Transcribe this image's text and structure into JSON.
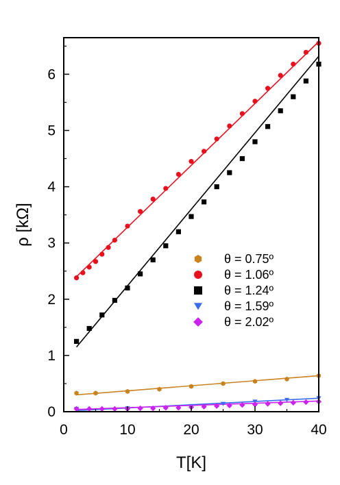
{
  "chart_data": {
    "type": "scatter",
    "title": "",
    "xlabel": "T[K]",
    "ylabel": "ρ [kΩ]",
    "xlim": [
      0,
      40
    ],
    "ylim": [
      0,
      6.65
    ],
    "xticks": [
      "0",
      "10",
      "20",
      "30",
      "40"
    ],
    "yticks": [
      "0",
      "1",
      "2",
      "3",
      "4",
      "5",
      "6"
    ],
    "legend_position": "center-right",
    "grid": false,
    "series": [
      {
        "name": "θ = 0.75º",
        "color": "#c8821e",
        "marker": "hexagon",
        "data": [
          [
            2,
            0.33
          ],
          [
            5,
            0.33
          ],
          [
            10,
            0.36
          ],
          [
            15,
            0.4
          ],
          [
            20,
            0.45
          ],
          [
            25,
            0.5
          ],
          [
            30,
            0.54
          ],
          [
            35,
            0.58
          ],
          [
            40,
            0.64
          ]
        ],
        "fit": [
          [
            2,
            0.3
          ],
          [
            40,
            0.64
          ]
        ]
      },
      {
        "name": "θ = 1.06º",
        "color": "#e8101e",
        "marker": "circle",
        "data": [
          [
            2,
            2.38
          ],
          [
            3,
            2.47
          ],
          [
            4,
            2.57
          ],
          [
            5,
            2.67
          ],
          [
            6,
            2.8
          ],
          [
            7,
            2.92
          ],
          [
            8,
            3.05
          ],
          [
            10,
            3.3
          ],
          [
            12,
            3.56
          ],
          [
            14,
            3.78
          ],
          [
            16,
            3.97
          ],
          [
            18,
            4.22
          ],
          [
            20,
            4.45
          ],
          [
            22,
            4.63
          ],
          [
            24,
            4.85
          ],
          [
            26,
            5.08
          ],
          [
            28,
            5.3
          ],
          [
            30,
            5.52
          ],
          [
            32,
            5.75
          ],
          [
            34,
            5.98
          ],
          [
            36,
            6.18
          ],
          [
            38,
            6.39
          ],
          [
            40,
            6.55
          ]
        ],
        "fit": [
          [
            2,
            2.4
          ],
          [
            40,
            6.58
          ]
        ]
      },
      {
        "name": "θ = 1.24º",
        "color": "#000000",
        "marker": "square",
        "data": [
          [
            2,
            1.25
          ],
          [
            4,
            1.48
          ],
          [
            6,
            1.72
          ],
          [
            8,
            1.98
          ],
          [
            10,
            2.2
          ],
          [
            12,
            2.45
          ],
          [
            14,
            2.7
          ],
          [
            16,
            2.95
          ],
          [
            18,
            3.2
          ],
          [
            20,
            3.47
          ],
          [
            22,
            3.73
          ],
          [
            24,
            4.0
          ],
          [
            26,
            4.25
          ],
          [
            28,
            4.5
          ],
          [
            30,
            4.8
          ],
          [
            32,
            5.07
          ],
          [
            34,
            5.35
          ],
          [
            36,
            5.6
          ],
          [
            38,
            5.88
          ],
          [
            40,
            6.18
          ]
        ],
        "fit": [
          [
            2,
            1.15
          ],
          [
            40,
            6.32
          ]
        ]
      },
      {
        "name": "θ = 1.59º",
        "color": "#3a6cf0",
        "marker": "triangle-down",
        "data": [
          [
            2,
            0.05
          ],
          [
            10,
            0.06
          ],
          [
            20,
            0.1
          ],
          [
            25,
            0.14
          ],
          [
            30,
            0.18
          ],
          [
            35,
            0.21
          ],
          [
            40,
            0.24
          ]
        ],
        "fit": [
          [
            2,
            0.02
          ],
          [
            40,
            0.24
          ]
        ]
      },
      {
        "name": "θ = 2.02º",
        "color": "#cc22ee",
        "marker": "diamond",
        "data": [
          [
            2,
            0.05
          ],
          [
            4,
            0.05
          ],
          [
            6,
            0.05
          ],
          [
            8,
            0.05
          ],
          [
            10,
            0.05
          ],
          [
            12,
            0.06
          ],
          [
            14,
            0.06
          ],
          [
            16,
            0.07
          ],
          [
            18,
            0.07
          ],
          [
            20,
            0.08
          ],
          [
            22,
            0.09
          ],
          [
            24,
            0.1
          ],
          [
            26,
            0.11
          ],
          [
            28,
            0.12
          ],
          [
            30,
            0.13
          ],
          [
            32,
            0.14
          ],
          [
            34,
            0.15
          ],
          [
            36,
            0.16
          ],
          [
            38,
            0.17
          ],
          [
            40,
            0.18
          ]
        ],
        "fit": [
          [
            2,
            0.04
          ],
          [
            40,
            0.19
          ]
        ]
      }
    ]
  }
}
